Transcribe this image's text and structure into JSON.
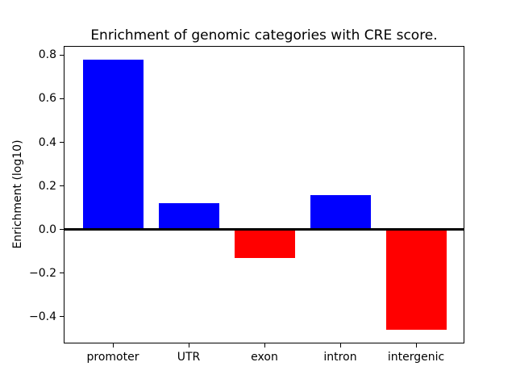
{
  "chart_data": {
    "type": "bar",
    "title": "Enrichment of genomic categories with CRE score.",
    "xlabel": "",
    "ylabel": "Enrichment (log10)",
    "categories": [
      "promoter",
      "UTR",
      "exon",
      "intron",
      "intergenic"
    ],
    "values": [
      0.78,
      0.12,
      -0.13,
      0.16,
      -0.46
    ],
    "bar_colors": [
      "#0000ff",
      "#0000ff",
      "#ff0000",
      "#0000ff",
      "#ff0000"
    ],
    "positive_color": "#0000ff",
    "negative_color": "#ff0000",
    "ylim": [
      -0.522,
      0.842
    ],
    "yticks": [
      0.8,
      0.6,
      0.4,
      0.2,
      0.0,
      -0.2,
      -0.4
    ],
    "ytick_labels": [
      "0.8",
      "0.6",
      "0.4",
      "0.2",
      "0.0",
      "−0.2",
      "−0.4"
    ],
    "grid": false,
    "legend": "none",
    "zero_line": true,
    "background_color": "#ffffff",
    "axis_color": "#000000"
  }
}
